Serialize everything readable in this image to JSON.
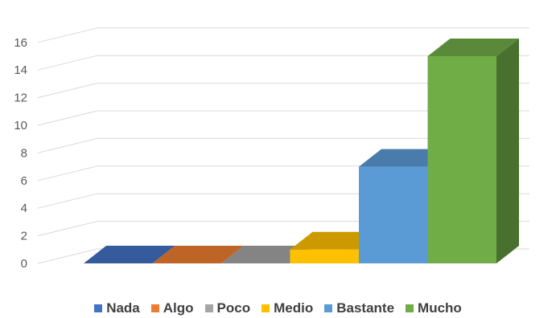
{
  "chart_data": {
    "type": "bar",
    "style": "3d-column",
    "title": "",
    "xlabel": "",
    "ylabel": "",
    "ylim": [
      0,
      16
    ],
    "yticks": [
      0,
      2,
      4,
      6,
      8,
      10,
      12,
      14,
      16
    ],
    "grid": true,
    "legend_position": "bottom",
    "categories": [
      "Nada",
      "Algo",
      "Poco",
      "Medio",
      "Bastante",
      "Mucho"
    ],
    "values": [
      0,
      0,
      0,
      1,
      7,
      15
    ],
    "colors": [
      "#4472C4",
      "#ED7D31",
      "#A5A5A5",
      "#FFC000",
      "#5B9BD5",
      "#70AD47"
    ]
  }
}
